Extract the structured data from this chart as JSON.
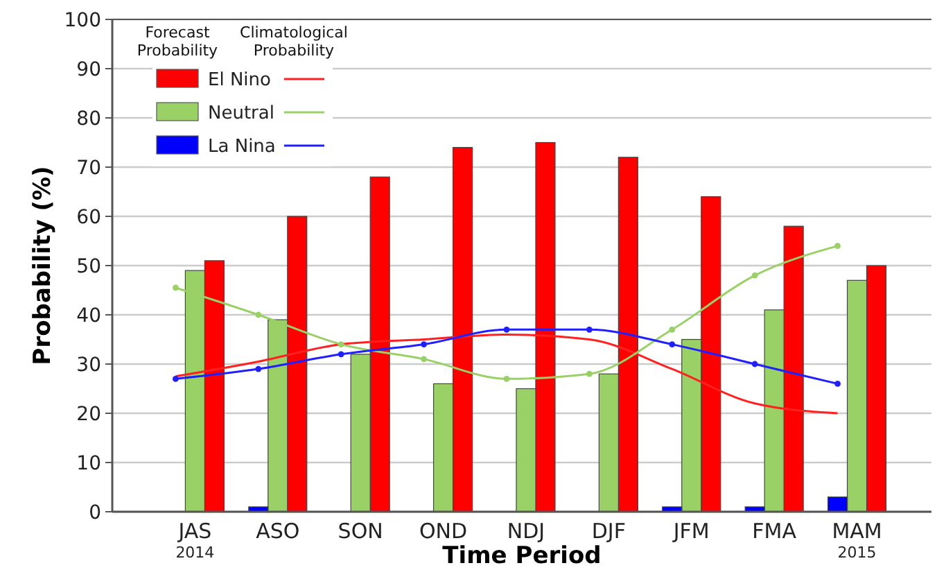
{
  "chart_data": {
    "type": "bar",
    "xlabel": "Time Period",
    "ylabel": "Probability (%)",
    "categories": [
      "JAS\n2014",
      "ASO",
      "SON",
      "OND",
      "NDJ",
      "DJF",
      "JFM",
      "FMA",
      "MAM\n2015"
    ],
    "series": [
      {
        "name": "El Nino",
        "color": "#ff0000",
        "values": [
          51,
          60,
          68,
          74,
          75,
          72,
          64,
          58,
          50
        ]
      },
      {
        "name": "Neutral",
        "color": "#99d166",
        "values": [
          49,
          39,
          32,
          26,
          25,
          28,
          35,
          41,
          47
        ]
      },
      {
        "name": "La Nina",
        "color": "#0000ff",
        "values": [
          0,
          1,
          0,
          0,
          0,
          0,
          1,
          1,
          3
        ]
      },
      {
        "type": "line",
        "color": "#ff2020",
        "marker": "none",
        "values": [
          27.5,
          30.5,
          34,
          35,
          36,
          35,
          29,
          22,
          20
        ]
      },
      {
        "type": "line",
        "color": "#99d166",
        "marker": "circle",
        "values": [
          45.5,
          40,
          34,
          31,
          27,
          28,
          37,
          48,
          54
        ]
      },
      {
        "type": "line",
        "color": "#2020ff",
        "marker": "circle",
        "values": [
          27,
          29,
          32,
          34,
          37,
          37,
          34,
          30,
          26
        ]
      }
    ],
    "ylim": [
      0,
      100
    ],
    "yticks": [
      0,
      10,
      20,
      30,
      40,
      50,
      60,
      70,
      80,
      90,
      100
    ],
    "grid": "y",
    "legend": "top left",
    "annotations": [
      "Forecast\nProbability",
      "Climatological\nProbability"
    ]
  }
}
